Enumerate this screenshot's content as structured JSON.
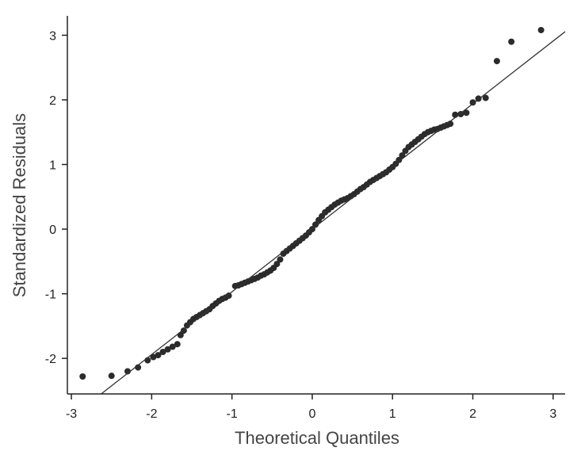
{
  "chart_data": {
    "type": "scatter",
    "title": "",
    "xlabel": "Theoretical Quantiles",
    "ylabel": "Standardized Residuals",
    "xlim": [
      -3.05,
      3.15
    ],
    "ylim": [
      -2.55,
      3.3
    ],
    "x_ticks": [
      -3,
      -2,
      -1,
      0,
      1,
      2,
      3
    ],
    "y_ticks": [
      -2,
      -1,
      0,
      1,
      2,
      3
    ],
    "grid": false,
    "legend": "none",
    "point_color": "#2b2b2b",
    "line_color": "#333333",
    "reference_line": {
      "slope": 0.97,
      "intercept": 0.0
    },
    "points": [
      [
        -2.86,
        -2.28
      ],
      [
        -2.5,
        -2.27
      ],
      [
        -2.3,
        -2.2
      ],
      [
        -2.17,
        -2.14
      ],
      [
        -2.05,
        -2.03
      ],
      [
        -1.98,
        -1.98
      ],
      [
        -1.92,
        -1.95
      ],
      [
        -1.86,
        -1.9
      ],
      [
        -1.8,
        -1.86
      ],
      [
        -1.74,
        -1.82
      ],
      [
        -1.68,
        -1.78
      ],
      [
        -1.64,
        -1.64
      ],
      [
        -1.6,
        -1.57
      ],
      [
        -1.56,
        -1.49
      ],
      [
        -1.52,
        -1.44
      ],
      [
        -1.48,
        -1.39
      ],
      [
        -1.44,
        -1.36
      ],
      [
        -1.4,
        -1.33
      ],
      [
        -1.36,
        -1.3
      ],
      [
        -1.32,
        -1.27
      ],
      [
        -1.28,
        -1.24
      ],
      [
        -1.24,
        -1.19
      ],
      [
        -1.2,
        -1.15
      ],
      [
        -1.16,
        -1.11
      ],
      [
        -1.12,
        -1.08
      ],
      [
        -1.08,
        -1.06
      ],
      [
        -1.04,
        -1.03
      ],
      [
        -0.96,
        -0.88
      ],
      [
        -0.92,
        -0.87
      ],
      [
        -0.88,
        -0.85
      ],
      [
        -0.84,
        -0.83
      ],
      [
        -0.8,
        -0.81
      ],
      [
        -0.76,
        -0.79
      ],
      [
        -0.72,
        -0.77
      ],
      [
        -0.68,
        -0.75
      ],
      [
        -0.64,
        -0.72
      ],
      [
        -0.6,
        -0.7
      ],
      [
        -0.56,
        -0.67
      ],
      [
        -0.52,
        -0.64
      ],
      [
        -0.48,
        -0.6
      ],
      [
        -0.44,
        -0.54
      ],
      [
        -0.4,
        -0.47
      ],
      [
        -0.36,
        -0.38
      ],
      [
        -0.32,
        -0.34
      ],
      [
        -0.28,
        -0.3
      ],
      [
        -0.24,
        -0.26
      ],
      [
        -0.2,
        -0.22
      ],
      [
        -0.16,
        -0.18
      ],
      [
        -0.12,
        -0.14
      ],
      [
        -0.08,
        -0.1
      ],
      [
        -0.04,
        -0.05
      ],
      [
        0.0,
        0.0
      ],
      [
        0.04,
        0.07
      ],
      [
        0.08,
        0.14
      ],
      [
        0.12,
        0.2
      ],
      [
        0.16,
        0.26
      ],
      [
        0.2,
        0.3
      ],
      [
        0.24,
        0.34
      ],
      [
        0.28,
        0.38
      ],
      [
        0.32,
        0.41
      ],
      [
        0.36,
        0.44
      ],
      [
        0.4,
        0.46
      ],
      [
        0.44,
        0.48
      ],
      [
        0.48,
        0.51
      ],
      [
        0.52,
        0.54
      ],
      [
        0.56,
        0.58
      ],
      [
        0.6,
        0.62
      ],
      [
        0.64,
        0.65
      ],
      [
        0.68,
        0.69
      ],
      [
        0.72,
        0.73
      ],
      [
        0.76,
        0.76
      ],
      [
        0.8,
        0.79
      ],
      [
        0.84,
        0.82
      ],
      [
        0.88,
        0.85
      ],
      [
        0.92,
        0.88
      ],
      [
        0.96,
        0.92
      ],
      [
        1.0,
        0.96
      ],
      [
        1.04,
        1.01
      ],
      [
        1.08,
        1.07
      ],
      [
        1.12,
        1.14
      ],
      [
        1.16,
        1.21
      ],
      [
        1.2,
        1.27
      ],
      [
        1.24,
        1.31
      ],
      [
        1.28,
        1.35
      ],
      [
        1.32,
        1.39
      ],
      [
        1.36,
        1.43
      ],
      [
        1.4,
        1.47
      ],
      [
        1.44,
        1.5
      ],
      [
        1.48,
        1.52
      ],
      [
        1.52,
        1.54
      ],
      [
        1.56,
        1.55
      ],
      [
        1.6,
        1.57
      ],
      [
        1.64,
        1.59
      ],
      [
        1.68,
        1.61
      ],
      [
        1.72,
        1.63
      ],
      [
        1.78,
        1.77
      ],
      [
        1.85,
        1.78
      ],
      [
        1.92,
        1.8
      ],
      [
        2.0,
        1.96
      ],
      [
        2.07,
        2.02
      ],
      [
        2.16,
        2.03
      ],
      [
        2.3,
        2.6
      ],
      [
        2.48,
        2.9
      ],
      [
        2.85,
        3.08
      ]
    ]
  }
}
